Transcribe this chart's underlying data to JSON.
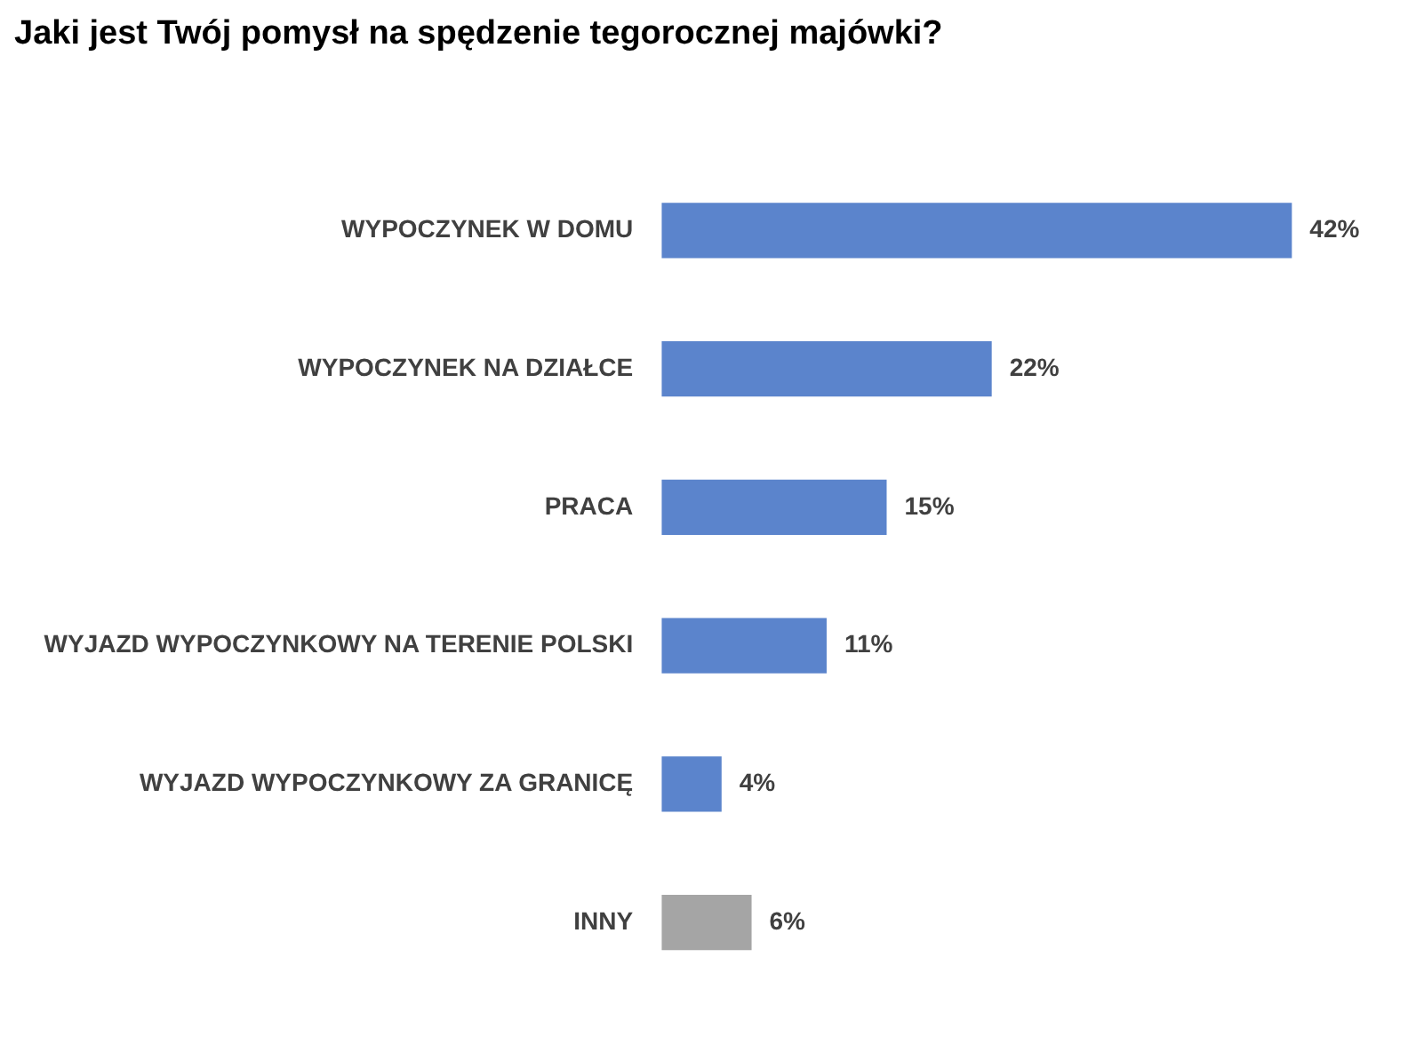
{
  "chart_data": {
    "type": "bar",
    "orientation": "horizontal",
    "title": "Jaki jest Twój pomysł na spędzenie tegorocznej majówki?",
    "categories": [
      "WYPOCZYNEK W DOMU",
      "WYPOCZYNEK NA DZIAŁCE",
      "PRACA",
      "WYJAZD WYPOCZYNKOWY NA TERENIE POLSKI",
      "WYJAZD WYPOCZYNKOWY ZA GRANICĘ",
      "INNY"
    ],
    "values": [
      42,
      22,
      15,
      11,
      4,
      6
    ],
    "colors": [
      "#5b84cc",
      "#5b84cc",
      "#5b84cc",
      "#5b84cc",
      "#5b84cc",
      "#a5a5a5"
    ],
    "value_labels": [
      "42%",
      "22%",
      "15%",
      "11%",
      "4%",
      "6%"
    ],
    "grid": false,
    "legend": false
  }
}
